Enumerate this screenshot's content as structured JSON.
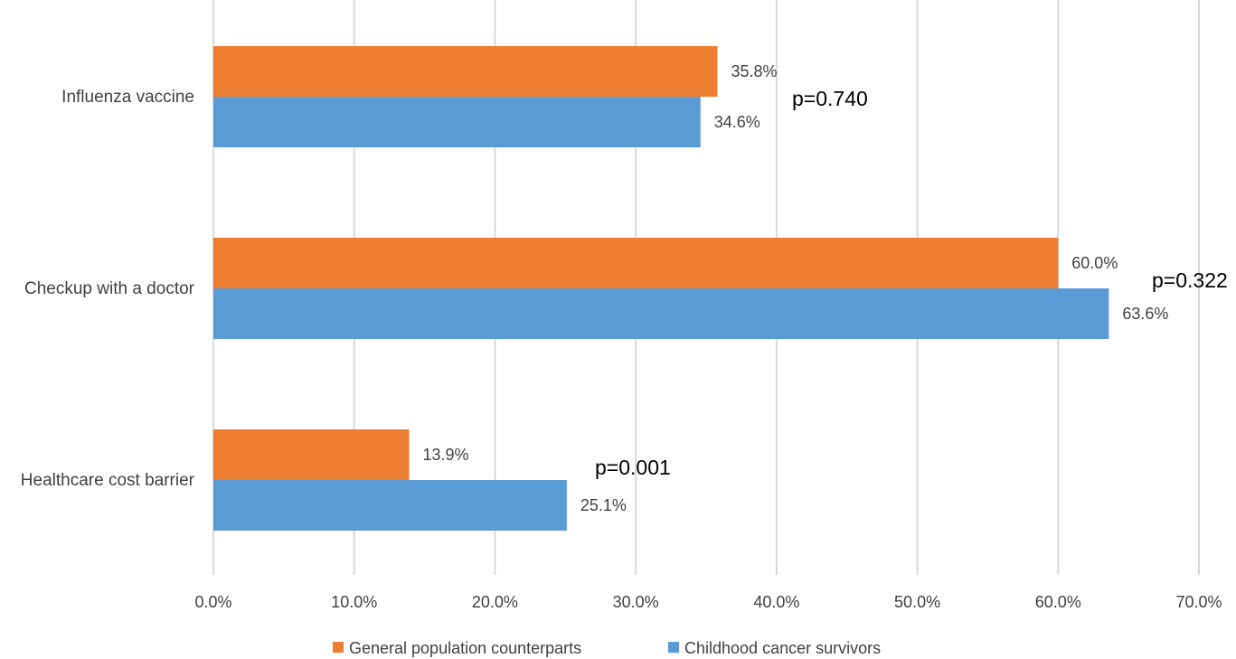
{
  "chart_data": {
    "type": "bar",
    "orientation": "horizontal",
    "categories": [
      "Influenza vaccine",
      "Checkup with a doctor",
      "Healthcare cost barrier"
    ],
    "series": [
      {
        "name": "General population counterparts",
        "color": "#ED7D31",
        "values": [
          35.8,
          60.0,
          13.9
        ],
        "labels": [
          "35.8%",
          "60.0%",
          "13.9%"
        ]
      },
      {
        "name": "Childhood cancer survivors",
        "color": "#5B9BD5",
        "values": [
          34.6,
          63.6,
          25.1
        ],
        "labels": [
          "34.6%",
          "63.6%",
          "25.1%"
        ]
      }
    ],
    "annotations": [
      "p=0.740",
      "p=0.322",
      "p=0.001"
    ],
    "xlim": [
      0,
      70
    ],
    "x_ticks": [
      0,
      10,
      20,
      30,
      40,
      50,
      60,
      70
    ],
    "x_tick_labels": [
      "0.0%",
      "10.0%",
      "20.0%",
      "30.0%",
      "40.0%",
      "50.0%",
      "60.0%",
      "70.0%"
    ],
    "title": "",
    "xlabel": "",
    "ylabel": "",
    "grid": "vertical",
    "legend_position": "bottom"
  }
}
